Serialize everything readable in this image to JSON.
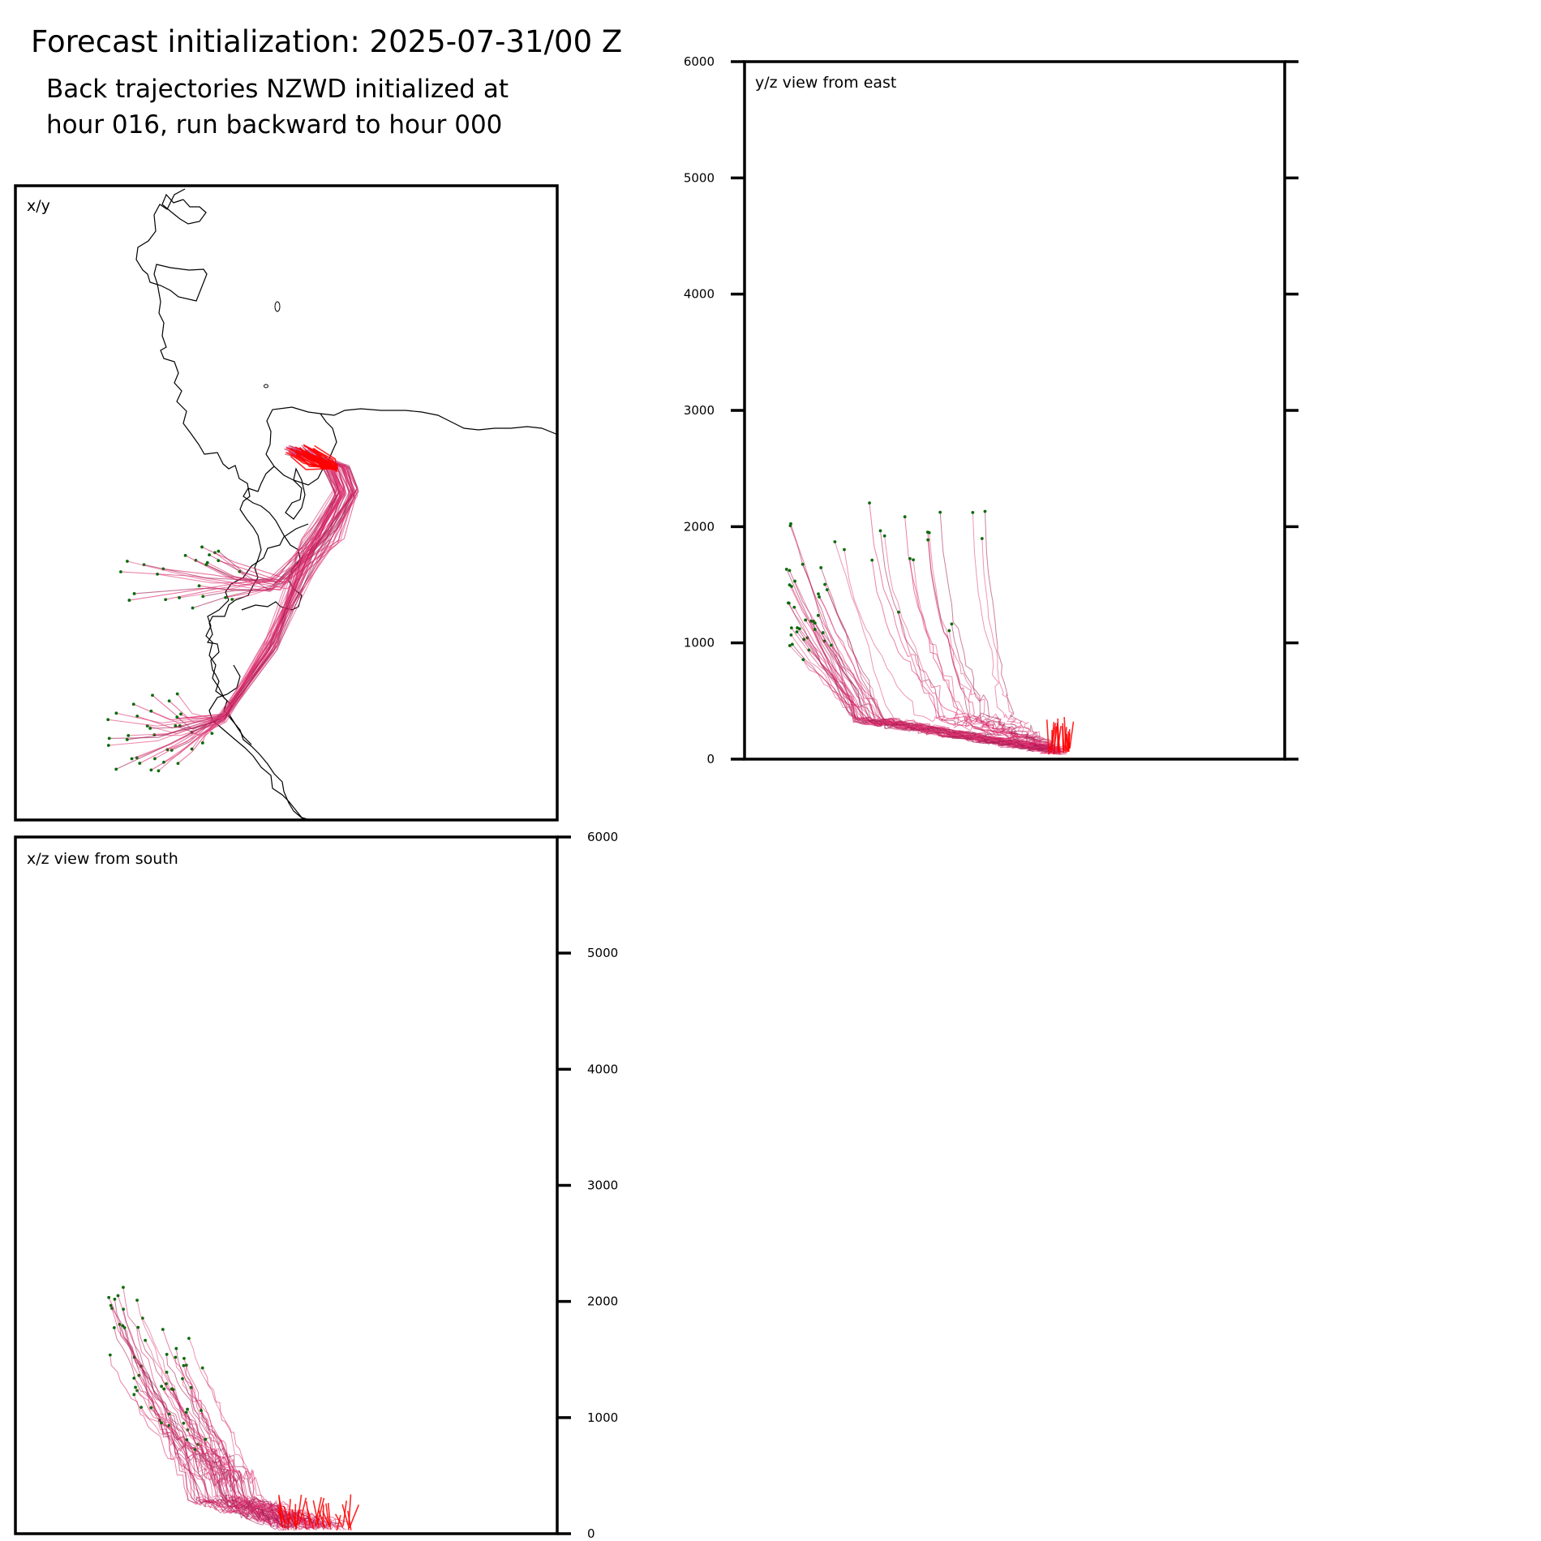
{
  "figure": {
    "title": "Forecast initialization: 2025-07-31/00 Z",
    "subtitle_line1": "Back trajectories NZWD initialized at",
    "subtitle_line2": "hour 016, run backward to hour 000"
  },
  "colors": {
    "trajectory_primary": "#d81b60",
    "trajectory_secondary": "#e0407a",
    "trajectory_dark": "#a0174e",
    "trajectory_start": "#ff0000",
    "endpoint_marker": "#0b6b0b",
    "coastline": "#000000",
    "frame": "#000000"
  },
  "chart_data": [
    {
      "type": "line",
      "panel": "x/y",
      "label": "x/y",
      "description_source": "map view of trajectories with coastline",
      "grid": false,
      "legend": "none"
    },
    {
      "type": "line",
      "panel": "y/z",
      "label": "y/z view from east",
      "y_axis": {
        "ylim": [
          0,
          6000
        ],
        "ticks": [
          0,
          1000,
          2000,
          3000,
          4000,
          5000,
          6000
        ],
        "tick_labels": [
          "0",
          "1000",
          "2000",
          "3000",
          "4000",
          "5000",
          "6000"
        ],
        "labels_side": "left"
      },
      "grid": false,
      "legend": "none"
    },
    {
      "type": "line",
      "panel": "x/z",
      "label": "x/z view from south",
      "y_axis": {
        "ylim": [
          0,
          6000
        ],
        "ticks": [
          0,
          1000,
          2000,
          3000,
          4000,
          5000,
          6000
        ],
        "tick_labels": [
          "0",
          "1000",
          "2000",
          "3000",
          "4000",
          "5000",
          "6000"
        ],
        "labels_side": "right"
      },
      "grid": false,
      "legend": "none"
    }
  ]
}
